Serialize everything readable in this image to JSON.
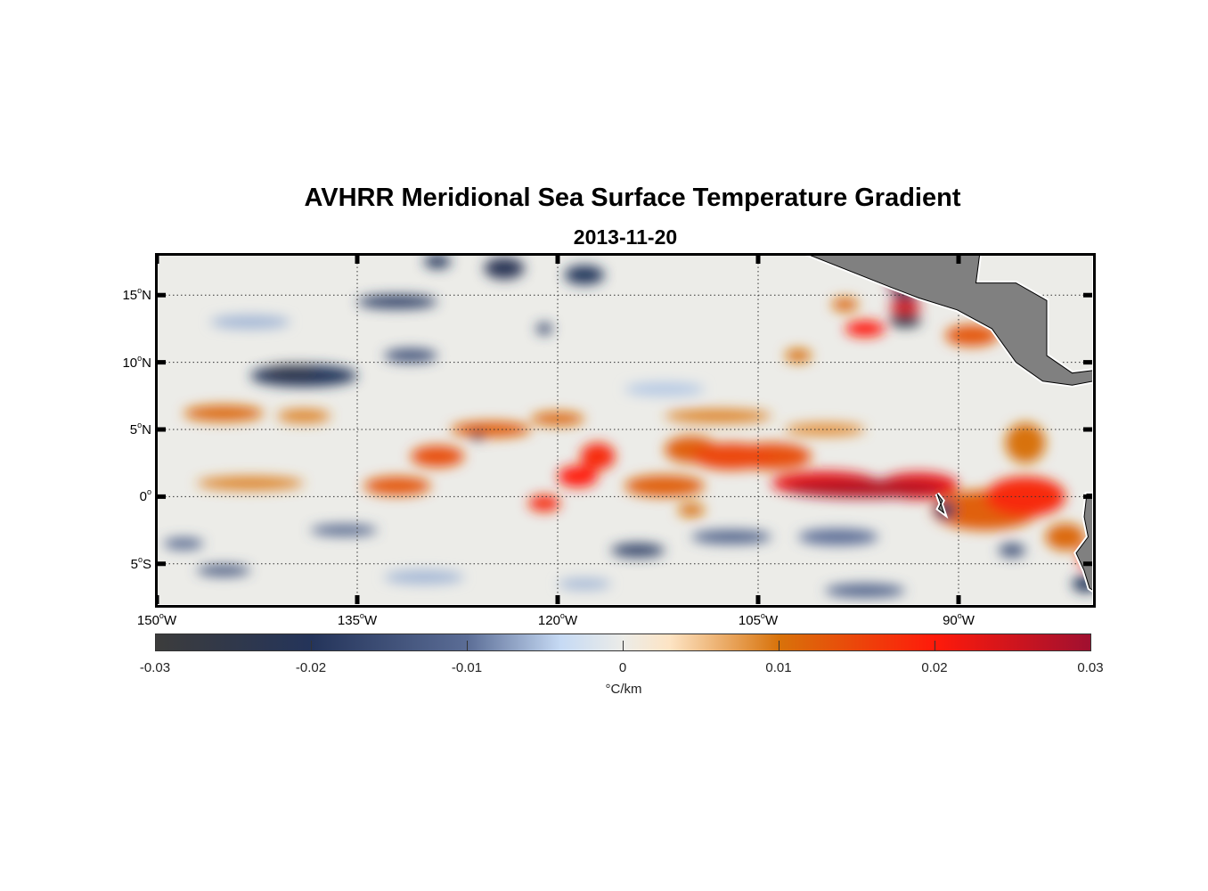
{
  "chart_data": {
    "type": "heatmap",
    "title": "AVHRR Meridional Sea Surface Temperature Gradient",
    "subtitle": "2013-11-20",
    "lon_range_W": [
      150,
      80
    ],
    "lat_range": [
      -8,
      18
    ],
    "x_ticks": [
      {
        "value": 150,
        "label": "150",
        "deg": "o",
        "hemi": "W"
      },
      {
        "value": 135,
        "label": "135",
        "deg": "o",
        "hemi": "W"
      },
      {
        "value": 120,
        "label": "120",
        "deg": "o",
        "hemi": "W"
      },
      {
        "value": 105,
        "label": "105",
        "deg": "o",
        "hemi": "W"
      },
      {
        "value": 90,
        "label": "90",
        "deg": "o",
        "hemi": "W"
      }
    ],
    "y_ticks": [
      {
        "value": 15,
        "label": "15",
        "deg": "o",
        "hemi": "N"
      },
      {
        "value": 10,
        "label": "10",
        "deg": "o",
        "hemi": "N"
      },
      {
        "value": 5,
        "label": "5",
        "deg": "o",
        "hemi": "N"
      },
      {
        "value": 0,
        "label": "0",
        "deg": "o",
        "hemi": ""
      },
      {
        "value": -5,
        "label": "5",
        "deg": "o",
        "hemi": "S"
      }
    ],
    "grid": true,
    "colorbar": {
      "range": [
        -0.03,
        0.03
      ],
      "ticks": [
        "-0.03",
        "-0.02",
        "-0.01",
        "0",
        "0.01",
        "0.02",
        "0.03"
      ],
      "tick_values": [
        -0.03,
        -0.02,
        -0.01,
        0,
        0.01,
        0.02,
        0.03
      ],
      "unit": "°C/km",
      "placement": "bottom"
    },
    "colormap": [
      [
        -0.03,
        "#3c3c3c"
      ],
      [
        -0.02,
        "#24345a"
      ],
      [
        -0.01,
        "#5b6d96"
      ],
      [
        -0.004,
        "#c6daf4"
      ],
      [
        0,
        "#ecece8"
      ],
      [
        0.003,
        "#fde4c4"
      ],
      [
        0.01,
        "#d8720a"
      ],
      [
        0.02,
        "#ff1a0a"
      ],
      [
        0.03,
        "#a01030"
      ]
    ],
    "background_value": 0,
    "land_color": "#808080",
    "features": [
      [
        97,
        0.6,
        6,
        0.7,
        0.028
      ],
      [
        100,
        1,
        4,
        0.9,
        0.022
      ],
      [
        93,
        0.8,
        3,
        1,
        0.022
      ],
      [
        88,
        -1,
        4,
        1.5,
        0.012
      ],
      [
        85,
        0,
        3,
        1.5,
        0.018
      ],
      [
        107,
        3,
        3,
        1,
        0.015
      ],
      [
        110,
        3.5,
        2,
        1,
        0.012
      ],
      [
        104,
        3,
        3,
        1,
        0.014
      ],
      [
        117,
        3,
        1.3,
        1,
        0.018
      ],
      [
        118.5,
        1.5,
        1.5,
        0.8,
        0.02
      ],
      [
        121,
        -0.5,
        1.2,
        0.6,
        0.018
      ],
      [
        112,
        0.8,
        3,
        0.8,
        0.012
      ],
      [
        132,
        0.8,
        2.5,
        0.7,
        0.013
      ],
      [
        129,
        3,
        2,
        0.8,
        0.014
      ],
      [
        125,
        5,
        3,
        0.6,
        0.012
      ],
      [
        120,
        5.8,
        2,
        0.5,
        0.011
      ],
      [
        145,
        6.2,
        3,
        0.6,
        0.011
      ],
      [
        139,
        6,
        2,
        0.5,
        0.009
      ],
      [
        143,
        1,
        4,
        0.5,
        0.009
      ],
      [
        108,
        6,
        4,
        0.5,
        0.009
      ],
      [
        100,
        5,
        3,
        0.5,
        0.008
      ],
      [
        97,
        12.5,
        1.5,
        0.6,
        0.02
      ],
      [
        98.5,
        14.3,
        1,
        0.5,
        0.011
      ],
      [
        94,
        14.1,
        1.2,
        0.5,
        0.024
      ],
      [
        94.5,
        15.8,
        0.8,
        0.4,
        0.03
      ],
      [
        89,
        12,
        2,
        0.8,
        0.013
      ],
      [
        85,
        4,
        1.5,
        1.5,
        0.01
      ],
      [
        82,
        -3,
        1.5,
        1,
        0.011
      ],
      [
        80.5,
        -4.5,
        0.5,
        0.8,
        0.02
      ],
      [
        110,
        -1,
        1,
        0.5,
        0.01
      ],
      [
        102,
        10.5,
        1,
        0.5,
        0.01
      ],
      [
        139,
        9,
        4,
        0.8,
        -0.02
      ],
      [
        140,
        9.3,
        2,
        0.5,
        -0.025
      ],
      [
        131,
        10.5,
        2,
        0.5,
        -0.015
      ],
      [
        132,
        14.5,
        3,
        0.5,
        -0.018
      ],
      [
        129,
        17.5,
        1,
        0.5,
        -0.02
      ],
      [
        124,
        17,
        1.5,
        0.8,
        -0.022
      ],
      [
        118,
        16.5,
        1.5,
        0.7,
        -0.02
      ],
      [
        121,
        12.5,
        0.6,
        0.4,
        -0.018
      ],
      [
        126,
        4.5,
        0.5,
        0.3,
        -0.025
      ],
      [
        114,
        -4,
        2,
        0.5,
        -0.018
      ],
      [
        107,
        -3,
        3,
        0.5,
        -0.012
      ],
      [
        136,
        -2.5,
        2.5,
        0.4,
        -0.012
      ],
      [
        145,
        -5.5,
        2,
        0.4,
        -0.014
      ],
      [
        148,
        -3.5,
        1.5,
        0.4,
        -0.012
      ],
      [
        94,
        15,
        1,
        0.4,
        -0.022
      ],
      [
        94,
        13.1,
        1.2,
        0.5,
        -0.026
      ],
      [
        91,
        -1,
        0.8,
        0.6,
        -0.018
      ],
      [
        99,
        -3,
        3,
        0.6,
        -0.01
      ],
      [
        97,
        -7,
        3,
        0.5,
        -0.012
      ],
      [
        80.5,
        -6.5,
        1,
        0.6,
        -0.02
      ],
      [
        86,
        -4,
        1,
        0.5,
        -0.015
      ],
      [
        143,
        13,
        3,
        0.5,
        -0.006
      ],
      [
        112,
        8,
        3,
        0.5,
        -0.005
      ],
      [
        130,
        -6,
        3,
        0.5,
        -0.006
      ],
      [
        118,
        -6.5,
        2,
        0.4,
        -0.006
      ]
    ],
    "land": [
      [
        [
          101.7,
          18.2
        ],
        [
          95.1,
          15.6
        ],
        [
          93,
          14.8
        ],
        [
          90.1,
          13.9
        ],
        [
          87.5,
          12.5
        ],
        [
          85.7,
          10
        ],
        [
          83.7,
          8.6
        ],
        [
          81.5,
          8.3
        ],
        [
          79.9,
          8.6
        ],
        [
          79.9,
          9.4
        ],
        [
          81.5,
          9.2
        ],
        [
          83.4,
          10.5
        ],
        [
          83.4,
          13
        ],
        [
          83.4,
          14.6
        ],
        [
          85.7,
          15.9
        ],
        [
          88.7,
          15.9
        ],
        [
          88.4,
          18.2
        ]
      ],
      [
        [
          79.9,
          0.2
        ],
        [
          80.4,
          0.2
        ],
        [
          80.6,
          -1.5
        ],
        [
          80.3,
          -3
        ],
        [
          81.2,
          -4.2
        ],
        [
          80.6,
          -5.5
        ],
        [
          80.2,
          -6.8
        ],
        [
          79.9,
          -7
        ]
      ],
      [
        [
          91.6,
          0.2
        ],
        [
          91.2,
          -0.3
        ],
        [
          91.5,
          -0.9
        ],
        [
          91.1,
          -1.2
        ],
        [
          91.3,
          -0.6
        ]
      ]
    ]
  }
}
